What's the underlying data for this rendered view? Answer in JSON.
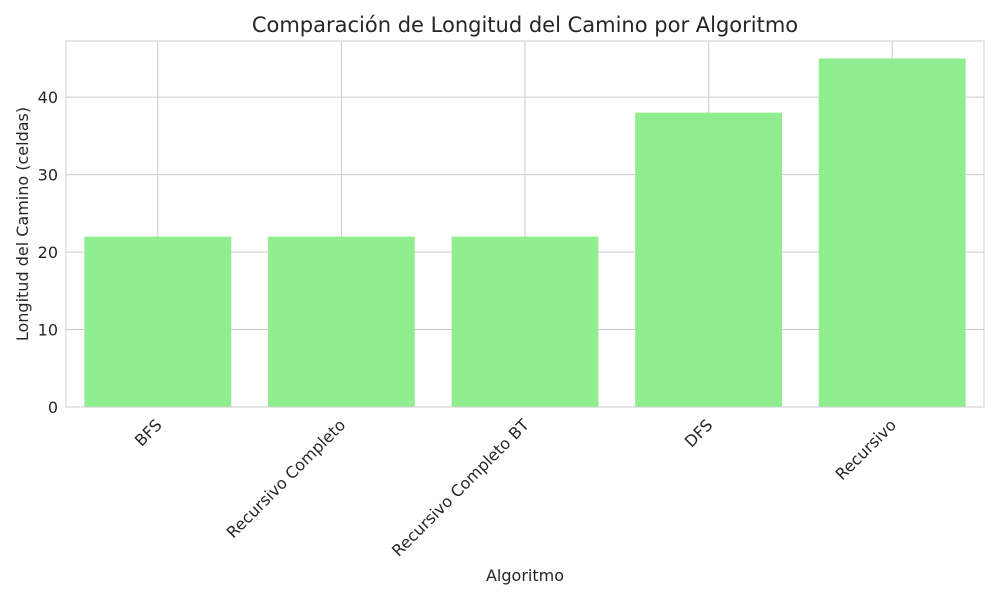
{
  "chart_data": {
    "type": "bar",
    "title": "Comparación de Longitud del Camino por Algoritmo",
    "xlabel": "Algoritmo",
    "ylabel": "Longitud del Camino (celdas)",
    "categories": [
      "BFS",
      "Recursivo Completo",
      "Recursivo Completo BT",
      "DFS",
      "Recursivo"
    ],
    "values": [
      22,
      22,
      22,
      38,
      45
    ],
    "ylim": [
      0,
      47.25
    ],
    "yticks": [
      0,
      10,
      20,
      30,
      40
    ],
    "grid": true,
    "legend": "none",
    "bar_color": "#90ee90"
  }
}
